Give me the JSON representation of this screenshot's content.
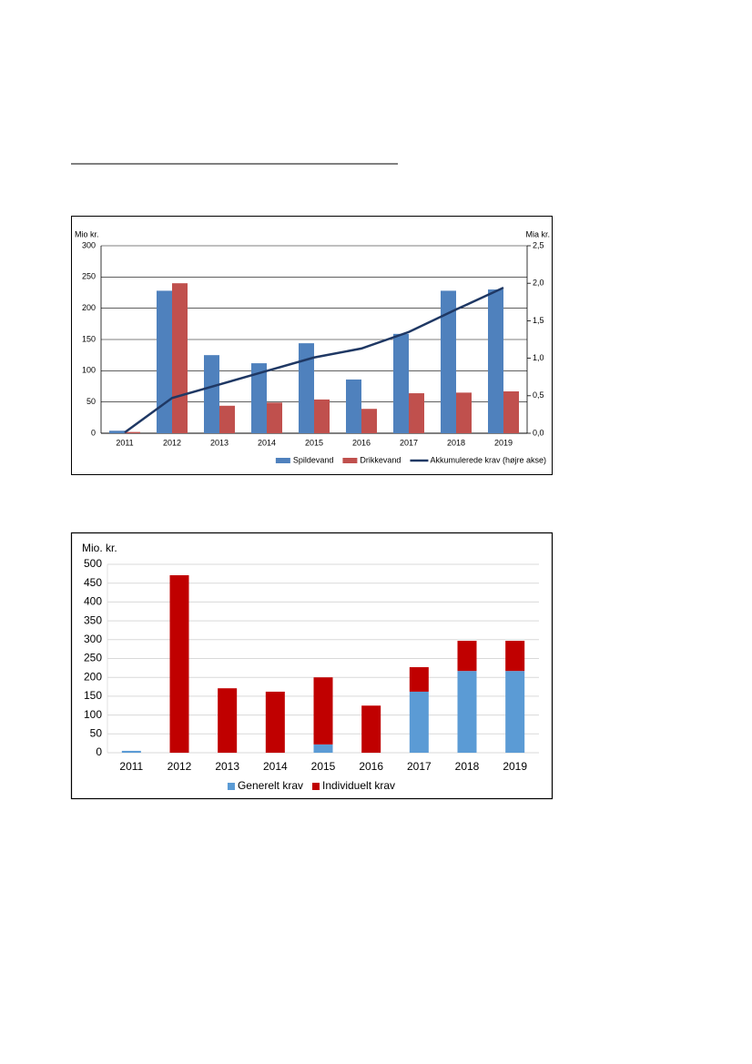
{
  "chart_data": [
    {
      "type": "bar",
      "y_label": "Mio kr.",
      "y2_label": "Mia kr.",
      "categories": [
        "2011",
        "2012",
        "2013",
        "2014",
        "2015",
        "2016",
        "2017",
        "2018",
        "2019"
      ],
      "series": [
        {
          "name": "Spildevand",
          "color": "#4f81bd",
          "values": [
            4,
            228,
            125,
            112,
            144,
            86,
            159,
            228,
            230
          ]
        },
        {
          "name": "Drikkevand",
          "color": "#c0504d",
          "values": [
            2,
            240,
            44,
            49,
            54,
            39,
            64,
            65,
            67
          ]
        },
        {
          "name": "Akkumulerede krav (højre akse)",
          "color": "#1f3864",
          "type": "line",
          "axis": "y2",
          "values": [
            0.01,
            0.47,
            0.65,
            0.83,
            1.01,
            1.13,
            1.35,
            1.65,
            1.94
          ]
        }
      ],
      "ylim": [
        0,
        300
      ],
      "yticks": [
        0,
        50,
        100,
        150,
        200,
        250,
        300
      ],
      "y2lim": [
        0,
        2.5
      ],
      "y2ticks": [
        {
          "value": 0,
          "label": "0,0"
        },
        {
          "value": 0.5,
          "label": "0,5"
        },
        {
          "value": 1,
          "label": "1,0"
        },
        {
          "value": 1.5,
          "label": "1,5"
        },
        {
          "value": 2,
          "label": "2,0"
        },
        {
          "value": 2.5,
          "label": "2,5"
        }
      ],
      "grid": true,
      "legend": "bottom-right"
    },
    {
      "type": "stacked_bar",
      "y_label": "Mio. kr.",
      "categories": [
        "2011",
        "2012",
        "2013",
        "2014",
        "2015",
        "2016",
        "2017",
        "2018",
        "2019"
      ],
      "series": [
        {
          "name": "Generelt krav",
          "color": "#5b9bd5",
          "values": [
            5,
            0,
            0,
            0,
            22,
            0,
            162,
            217,
            217
          ]
        },
        {
          "name": "Individuelt krav",
          "color": "#c00000",
          "values": [
            0,
            471,
            171,
            162,
            178,
            125,
            65,
            80,
            80
          ]
        }
      ],
      "ylim": [
        0,
        500
      ],
      "yticks": [
        0,
        50,
        100,
        150,
        200,
        250,
        300,
        350,
        400,
        450,
        500
      ],
      "grid": true,
      "legend": "bottom"
    }
  ]
}
